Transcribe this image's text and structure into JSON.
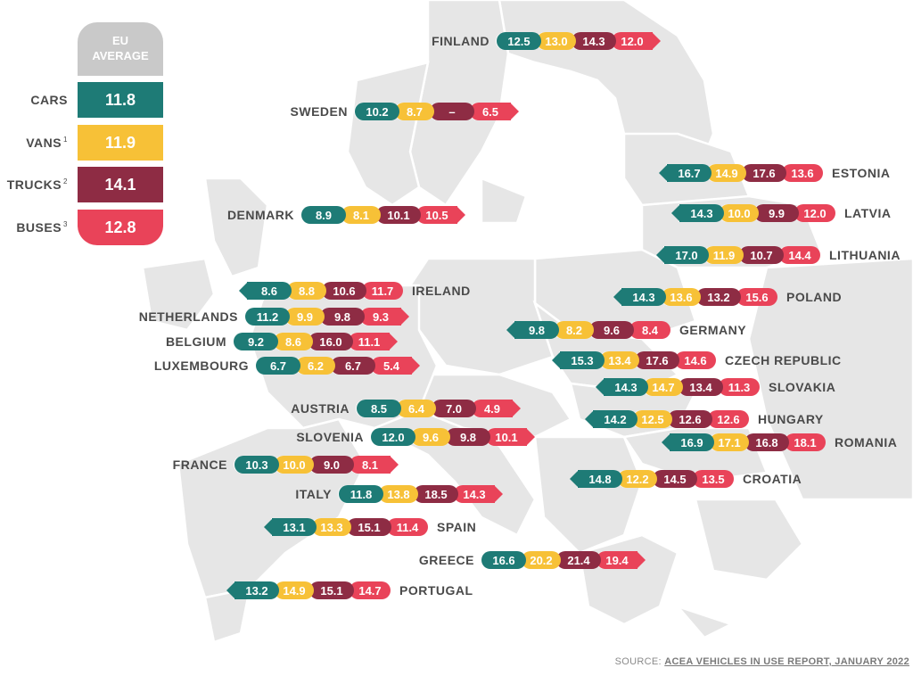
{
  "legend": {
    "header_line1": "EU",
    "header_line2": "AVERAGE",
    "items": [
      {
        "label": "CARS",
        "sup": "",
        "value": "11.8"
      },
      {
        "label": "VANS",
        "sup": "1",
        "value": "11.9"
      },
      {
        "label": "TRUCKS",
        "sup": "2",
        "value": "14.1"
      },
      {
        "label": "BUSES",
        "sup": "3",
        "value": "12.8"
      }
    ]
  },
  "colors": {
    "cars": "#1e7b76",
    "vans": "#f7c137",
    "trucks": "#8e2c44",
    "buses": "#e94359",
    "map": "#e6e6e6"
  },
  "countries": [
    {
      "name": "FINLAND",
      "values": [
        "12.5",
        "13.0",
        "14.3",
        "12.0"
      ]
    },
    {
      "name": "SWEDEN",
      "values": [
        "10.2",
        "8.7",
        "–",
        "6.5"
      ]
    },
    {
      "name": "ESTONIA",
      "values": [
        "16.7",
        "14.9",
        "17.6",
        "13.6"
      ]
    },
    {
      "name": "DENMARK",
      "values": [
        "8.9",
        "8.1",
        "10.1",
        "10.5"
      ]
    },
    {
      "name": "LATVIA",
      "values": [
        "14.3",
        "10.0",
        "9.9",
        "12.0"
      ]
    },
    {
      "name": "LITHUANIA",
      "values": [
        "17.0",
        "11.9",
        "10.7",
        "14.4"
      ]
    },
    {
      "name": "IRELAND",
      "values": [
        "8.6",
        "8.8",
        "10.6",
        "11.7"
      ]
    },
    {
      "name": "POLAND",
      "values": [
        "14.3",
        "13.6",
        "13.2",
        "15.6"
      ]
    },
    {
      "name": "NETHERLANDS",
      "values": [
        "11.2",
        "9.9",
        "9.8",
        "9.3"
      ]
    },
    {
      "name": "GERMANY",
      "values": [
        "9.8",
        "8.2",
        "9.6",
        "8.4"
      ]
    },
    {
      "name": "BELGIUM",
      "values": [
        "9.2",
        "8.6",
        "16.0",
        "11.1"
      ]
    },
    {
      "name": "CZECH REPUBLIC",
      "values": [
        "15.3",
        "13.4",
        "17.6",
        "14.6"
      ]
    },
    {
      "name": "LUXEMBOURG",
      "values": [
        "6.7",
        "6.2",
        "6.7",
        "5.4"
      ]
    },
    {
      "name": "SLOVAKIA",
      "values": [
        "14.3",
        "14.7",
        "13.4",
        "11.3"
      ]
    },
    {
      "name": "AUSTRIA",
      "values": [
        "8.5",
        "6.4",
        "7.0",
        "4.9"
      ]
    },
    {
      "name": "HUNGARY",
      "values": [
        "14.2",
        "12.5",
        "12.6",
        "12.6"
      ]
    },
    {
      "name": "SLOVENIA",
      "values": [
        "12.0",
        "9.6",
        "9.8",
        "10.1"
      ]
    },
    {
      "name": "ROMANIA",
      "values": [
        "16.9",
        "17.1",
        "16.8",
        "18.1"
      ]
    },
    {
      "name": "FRANCE",
      "values": [
        "10.3",
        "10.0",
        "9.0",
        "8.1"
      ]
    },
    {
      "name": "CROATIA",
      "values": [
        "14.8",
        "12.2",
        "14.5",
        "13.5"
      ]
    },
    {
      "name": "ITALY",
      "values": [
        "11.8",
        "13.8",
        "18.5",
        "14.3"
      ]
    },
    {
      "name": "SPAIN",
      "values": [
        "13.1",
        "13.3",
        "15.1",
        "11.4"
      ]
    },
    {
      "name": "GREECE",
      "values": [
        "16.6",
        "20.2",
        "21.4",
        "19.4"
      ]
    },
    {
      "name": "PORTUGAL",
      "values": [
        "13.2",
        "14.9",
        "15.1",
        "14.7"
      ]
    }
  ],
  "source": {
    "prefix": "SOURCE: ",
    "link": "ACEA VEHICLES IN USE REPORT, JANUARY 2022"
  }
}
